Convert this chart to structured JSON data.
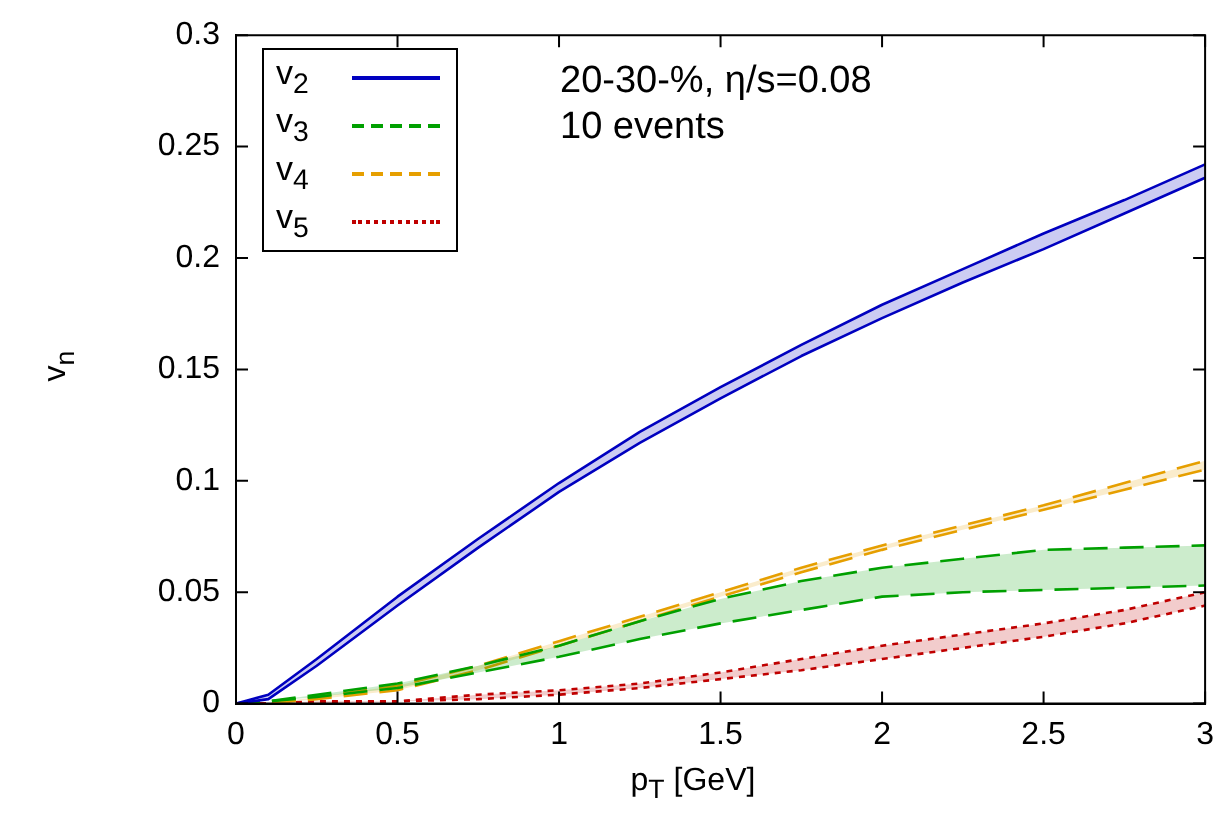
{
  "chart_data": {
    "type": "line",
    "xlabel": "p$_{T}$ [GeV]",
    "ylabel": "v$_{n}$",
    "annotations": [
      "20-30-%, η/s=0.08",
      "10 events"
    ],
    "x": [
      0,
      0.1,
      0.25,
      0.5,
      0.75,
      1,
      1.25,
      1.5,
      1.75,
      2,
      2.25,
      2.5,
      2.75,
      3
    ],
    "series": [
      {
        "name": "v$_{2}$",
        "color": "#0000c0",
        "line_style": "solid",
        "values": [
          0,
          0.004,
          0.02,
          0.048,
          0.074,
          0.099,
          0.122,
          0.142,
          0.161,
          0.179,
          0.195,
          0.211,
          0.226,
          0.242
        ],
        "lower": [
          0,
          0.002,
          0.017,
          0.044,
          0.07,
          0.095,
          0.117,
          0.137,
          0.156,
          0.173,
          0.189,
          0.204,
          0.22,
          0.236
        ],
        "upper": [
          0,
          0.004,
          0.02,
          0.048,
          0.074,
          0.099,
          0.122,
          0.142,
          0.161,
          0.179,
          0.195,
          0.211,
          0.226,
          0.242
        ]
      },
      {
        "color": "#0000c0",
        "line_style": "solid",
        "values": [
          0,
          0.002,
          0.017,
          0.044,
          0.07,
          0.095,
          0.117,
          0.137,
          0.156,
          0.173,
          0.189,
          0.204,
          0.22,
          0.236
        ]
      },
      {
        "name": "v$_{3}$",
        "color": "#00a000",
        "line_style": "dashed",
        "values": [
          0,
          0.001,
          0.004,
          0.009,
          0.017,
          0.026,
          0.037,
          0.047,
          0.055,
          0.061,
          0.065,
          0.069,
          0.07,
          0.071
        ],
        "lower": [
          0,
          0.001,
          0.003,
          0.007,
          0.014,
          0.021,
          0.029,
          0.036,
          0.042,
          0.048,
          0.05,
          0.051,
          0.052,
          0.053
        ],
        "upper": [
          0,
          0.001,
          0.004,
          0.009,
          0.017,
          0.026,
          0.037,
          0.047,
          0.055,
          0.061,
          0.065,
          0.069,
          0.07,
          0.071
        ]
      },
      {
        "color": "#00a000",
        "line_style": "dashed",
        "values": [
          0,
          0.001,
          0.003,
          0.007,
          0.014,
          0.021,
          0.029,
          0.036,
          0.042,
          0.048,
          0.05,
          0.051,
          0.052,
          0.053
        ]
      },
      {
        "name": "v$_{4}$",
        "color": "#e69f00",
        "line_style": "dashed",
        "values": [
          0,
          0,
          0.003,
          0.008,
          0.017,
          0.028,
          0.039,
          0.05,
          0.061,
          0.071,
          0.08,
          0.089,
          0.099,
          0.109
        ],
        "lower": [
          0,
          0,
          0.002,
          0.006,
          0.015,
          0.026,
          0.037,
          0.048,
          0.059,
          0.069,
          0.078,
          0.087,
          0.096,
          0.105
        ],
        "upper": [
          0,
          0,
          0.003,
          0.008,
          0.017,
          0.028,
          0.039,
          0.05,
          0.061,
          0.071,
          0.08,
          0.089,
          0.099,
          0.109
        ]
      },
      {
        "color": "#e69f00",
        "line_style": "dashed",
        "values": [
          0,
          0,
          0.002,
          0.006,
          0.015,
          0.026,
          0.037,
          0.048,
          0.059,
          0.069,
          0.078,
          0.087,
          0.096,
          0.105
        ]
      },
      {
        "name": "v$_{5}$",
        "color": "#c00000",
        "line_style": "dotted",
        "values": [
          0,
          0,
          0.001,
          0.001,
          0.004,
          0.006,
          0.009,
          0.014,
          0.02,
          0.026,
          0.031,
          0.036,
          0.042,
          0.05
        ],
        "lower": [
          0,
          0,
          0,
          0.001,
          0.002,
          0.004,
          0.007,
          0.011,
          0.015,
          0.02,
          0.025,
          0.03,
          0.036,
          0.044
        ],
        "upper": [
          0,
          0,
          0.001,
          0.001,
          0.004,
          0.006,
          0.009,
          0.014,
          0.02,
          0.026,
          0.031,
          0.036,
          0.042,
          0.05
        ]
      },
      {
        "color": "#c00000",
        "line_style": "dotted",
        "values": [
          0,
          0,
          0,
          0.001,
          0.002,
          0.004,
          0.007,
          0.011,
          0.015,
          0.02,
          0.025,
          0.03,
          0.036,
          0.044
        ]
      }
    ],
    "xlim": [
      0,
      3
    ],
    "xticks": [
      0,
      0.5,
      1,
      1.5,
      2,
      2.5,
      3
    ],
    "ylim": [
      0,
      0.3
    ],
    "yticks": [
      0,
      0.05,
      0.1,
      0.15,
      0.2,
      0.25,
      0.3
    ],
    "grid": false,
    "legend": "top left",
    "marker": "none"
  }
}
